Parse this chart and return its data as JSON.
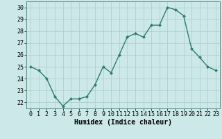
{
  "x": [
    0,
    1,
    2,
    3,
    4,
    5,
    6,
    7,
    8,
    9,
    10,
    11,
    12,
    13,
    14,
    15,
    16,
    17,
    18,
    19,
    20,
    21,
    22,
    23
  ],
  "y": [
    25.0,
    24.7,
    24.0,
    22.5,
    21.7,
    22.3,
    22.3,
    22.5,
    23.5,
    25.0,
    24.5,
    26.0,
    27.5,
    27.8,
    27.5,
    28.5,
    28.5,
    30.0,
    29.8,
    29.3,
    26.5,
    25.8,
    25.0,
    24.7
  ],
  "line_color": "#2e7d6e",
  "marker": "D",
  "marker_size": 2.0,
  "line_width": 1.0,
  "bg_color": "#cce8e8",
  "grid_color": "#aacccc",
  "xlabel": "Humidex (Indice chaleur)",
  "xlabel_fontsize": 7,
  "tick_fontsize": 6,
  "ylim": [
    21.5,
    30.5
  ],
  "yticks": [
    22,
    23,
    24,
    25,
    26,
    27,
    28,
    29,
    30
  ],
  "xticks": [
    0,
    1,
    2,
    3,
    4,
    5,
    6,
    7,
    8,
    9,
    10,
    11,
    12,
    13,
    14,
    15,
    16,
    17,
    18,
    19,
    20,
    21,
    22,
    23
  ],
  "xlim": [
    -0.5,
    23.5
  ]
}
